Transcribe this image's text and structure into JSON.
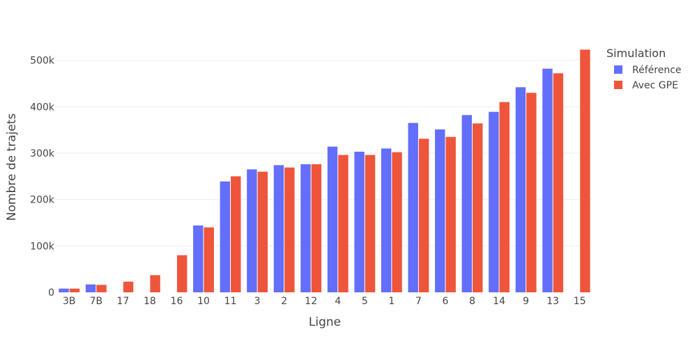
{
  "chart_data": {
    "type": "bar",
    "xlabel": "Ligne",
    "ylabel": "Nombre de trajets",
    "categories": [
      "3B",
      "7B",
      "17",
      "18",
      "16",
      "10",
      "11",
      "3",
      "2",
      "12",
      "4",
      "5",
      "1",
      "7",
      "6",
      "8",
      "14",
      "9",
      "13",
      "15"
    ],
    "series": [
      {
        "name": "Référence",
        "color": "#636efa",
        "values": [
          8000,
          17000,
          null,
          null,
          null,
          144000,
          239000,
          265000,
          274000,
          276000,
          314000,
          303000,
          310000,
          365000,
          351000,
          382000,
          389000,
          442000,
          482000,
          null
        ]
      },
      {
        "name": "Avec GPE",
        "color": "#ef553b",
        "values": [
          8000,
          16000,
          23000,
          37000,
          80000,
          140000,
          250000,
          260000,
          269000,
          276000,
          296000,
          296000,
          302000,
          331000,
          335000,
          364000,
          410000,
          430000,
          472000,
          523000
        ]
      }
    ],
    "ylim": [
      0,
      540000
    ],
    "yticks": [
      0,
      100000,
      200000,
      300000,
      400000,
      500000
    ],
    "ytick_labels": [
      "0",
      "100k",
      "200k",
      "300k",
      "400k",
      "500k"
    ],
    "legend_title": "Simulation",
    "legend_position": "top-right",
    "grid": true
  }
}
